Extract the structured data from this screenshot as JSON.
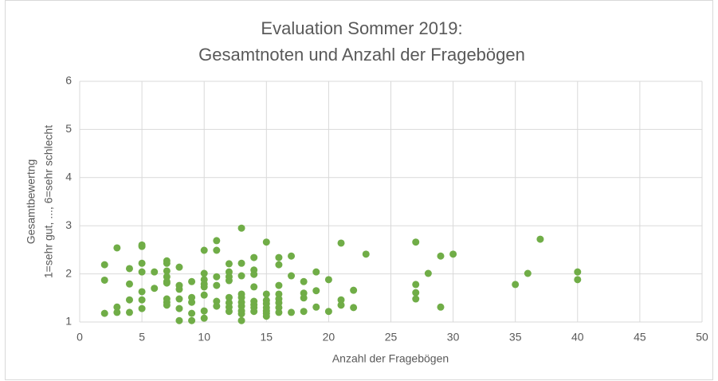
{
  "chart_data": {
    "type": "scatter",
    "title": [
      "Evaluation Sommer 2019:",
      "Gesamtnoten und Anzahl der Fragebögen"
    ],
    "x_label": "Anzahl der Fragebögen",
    "y_label": [
      "Gesamtbewertng",
      "1=sehr gut, ..., 6=sehr schlecht"
    ],
    "color": "#70ad47",
    "grid": true,
    "xlim": [
      0,
      50
    ],
    "xticks": [
      0,
      5,
      10,
      15,
      20,
      25,
      30,
      35,
      40,
      45,
      50
    ],
    "ylim": [
      1,
      6
    ],
    "yticks": [
      1,
      2,
      3,
      4,
      5,
      6
    ],
    "x": [
      2,
      2,
      2,
      3,
      3,
      3,
      4,
      4,
      4,
      4,
      5,
      5,
      5,
      5,
      5,
      5,
      5,
      6,
      6,
      7,
      7,
      7,
      7,
      7,
      7,
      7,
      7,
      7,
      8,
      8,
      8,
      8,
      8,
      8,
      9,
      9,
      9,
      9,
      9,
      10,
      10,
      10,
      10,
      10,
      10,
      10,
      10,
      11,
      11,
      11,
      11,
      11,
      11,
      12,
      12,
      12,
      12,
      12,
      12,
      12,
      12,
      13,
      13,
      13,
      13,
      13,
      13,
      13,
      13,
      13,
      13,
      14,
      14,
      14,
      14,
      14,
      14,
      14,
      14,
      15,
      15,
      15,
      15,
      15,
      15,
      15,
      15,
      16,
      16,
      16,
      16,
      16,
      16,
      16,
      16,
      17,
      17,
      17,
      18,
      18,
      18,
      18,
      19,
      19,
      19,
      20,
      20,
      21,
      21,
      21,
      22,
      22,
      23,
      27,
      27,
      27,
      27,
      28,
      29,
      29,
      30,
      35,
      36,
      37,
      40,
      40
    ],
    "values": [
      2.19,
      1.87,
      1.18,
      2.54,
      1.31,
      1.2,
      2.11,
      1.79,
      1.46,
      1.2,
      2.6,
      2.57,
      2.22,
      2.04,
      1.63,
      1.46,
      1.28,
      2.04,
      1.7,
      2.27,
      2.22,
      2.06,
      1.94,
      1.84,
      1.81,
      1.48,
      1.41,
      1.35,
      2.14,
      1.76,
      1.68,
      1.48,
      1.28,
      1.03,
      1.84,
      1.51,
      1.41,
      1.18,
      1.03,
      2.49,
      2.01,
      1.88,
      1.79,
      1.73,
      1.56,
      1.23,
      1.08,
      2.69,
      2.49,
      1.94,
      1.76,
      1.43,
      1.33,
      2.21,
      2.04,
      1.94,
      1.86,
      1.51,
      1.4,
      1.31,
      1.22,
      2.95,
      2.22,
      1.96,
      1.58,
      1.51,
      1.41,
      1.33,
      1.23,
      1.17,
      1.03,
      2.34,
      2.08,
      1.99,
      1.73,
      1.43,
      1.36,
      1.3,
      1.22,
      2.66,
      1.58,
      1.45,
      1.38,
      1.3,
      1.23,
      1.18,
      1.12,
      2.34,
      2.19,
      1.76,
      1.58,
      1.48,
      1.4,
      1.3,
      1.2,
      2.37,
      1.96,
      1.2,
      1.84,
      1.6,
      1.5,
      1.22,
      2.04,
      1.65,
      1.31,
      1.88,
      1.22,
      2.64,
      1.46,
      1.35,
      1.66,
      1.3,
      2.41,
      2.66,
      1.78,
      1.61,
      1.48,
      2.01,
      2.37,
      1.31,
      2.41,
      1.78,
      2.01,
      2.72,
      2.04,
      1.88
    ]
  }
}
